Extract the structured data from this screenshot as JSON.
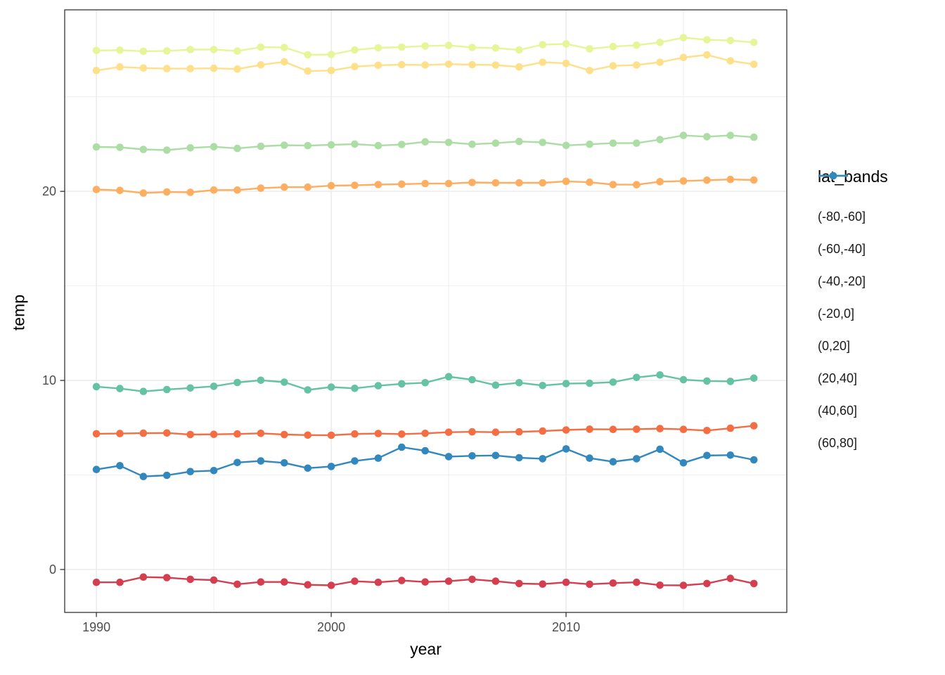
{
  "figure": {
    "background_color": "#ffffff",
    "panel_border_color": "#333333",
    "gridline_color": "#ebebeb",
    "tick_label_color": "#4d4d4d",
    "axis_title_color": "#000000"
  },
  "chart_data": {
    "type": "line",
    "title": "",
    "xlabel": "year",
    "ylabel": "temp",
    "legend_title": "lat_bands",
    "legend_position": "right",
    "grid": true,
    "x_ticks": [
      1990,
      2000,
      2010
    ],
    "y_ticks": [
      0,
      10,
      20
    ],
    "x_minor_ticks": [
      1995,
      2005,
      2015
    ],
    "y_minor_ticks": [
      5,
      15,
      25
    ],
    "xlim": [
      1988.65,
      2019.4
    ],
    "ylim": [
      -2.27,
      29.6
    ],
    "x": [
      1990,
      1991,
      1992,
      1993,
      1994,
      1995,
      1996,
      1997,
      1998,
      1999,
      2000,
      2001,
      2002,
      2003,
      2004,
      2005,
      2006,
      2007,
      2008,
      2009,
      2010,
      2011,
      2012,
      2013,
      2014,
      2015,
      2016,
      2017,
      2018
    ],
    "series": [
      {
        "name": "(-80,-60]",
        "color": "#d53e4f",
        "values": [
          -0.68,
          -0.68,
          -0.4,
          -0.43,
          -0.52,
          -0.56,
          -0.78,
          -0.66,
          -0.66,
          -0.81,
          -0.84,
          -0.62,
          -0.68,
          -0.58,
          -0.66,
          -0.62,
          -0.52,
          -0.62,
          -0.74,
          -0.77,
          -0.68,
          -0.78,
          -0.72,
          -0.68,
          -0.83,
          -0.84,
          -0.74,
          -0.47,
          -0.74
        ]
      },
      {
        "name": "(-60,-40]",
        "color": "#f46d43",
        "values": [
          7.18,
          7.19,
          7.21,
          7.22,
          7.14,
          7.15,
          7.17,
          7.2,
          7.14,
          7.11,
          7.1,
          7.17,
          7.19,
          7.16,
          7.2,
          7.26,
          7.28,
          7.26,
          7.28,
          7.32,
          7.38,
          7.42,
          7.41,
          7.42,
          7.45,
          7.41,
          7.35,
          7.47,
          7.6
        ]
      },
      {
        "name": "(-40,-20]",
        "color": "#fdae61",
        "values": [
          20.1,
          20.05,
          19.91,
          19.97,
          19.95,
          20.07,
          20.07,
          20.17,
          20.22,
          20.22,
          20.3,
          20.32,
          20.36,
          20.38,
          20.41,
          20.41,
          20.47,
          20.45,
          20.45,
          20.45,
          20.53,
          20.48,
          20.36,
          20.35,
          20.51,
          20.55,
          20.59,
          20.63,
          20.6
        ]
      },
      {
        "name": "(-20,0]",
        "color": "#fee08b",
        "values": [
          26.39,
          26.58,
          26.52,
          26.49,
          26.49,
          26.51,
          26.47,
          26.69,
          26.85,
          26.36,
          26.39,
          26.6,
          26.67,
          26.7,
          26.68,
          26.73,
          26.7,
          26.68,
          26.58,
          26.83,
          26.77,
          26.39,
          26.64,
          26.68,
          26.83,
          27.08,
          27.22,
          26.9,
          26.72
        ]
      },
      {
        "name": "(0,20]",
        "color": "#e6f598",
        "values": [
          27.45,
          27.47,
          27.41,
          27.43,
          27.5,
          27.5,
          27.42,
          27.63,
          27.61,
          27.22,
          27.24,
          27.48,
          27.59,
          27.63,
          27.69,
          27.72,
          27.61,
          27.58,
          27.48,
          27.76,
          27.8,
          27.54,
          27.66,
          27.73,
          27.88,
          28.13,
          28.02,
          27.98,
          27.88
        ]
      },
      {
        "name": "(20,40]",
        "color": "#abdda4",
        "values": [
          22.35,
          22.33,
          22.22,
          22.18,
          22.3,
          22.36,
          22.27,
          22.38,
          22.44,
          22.42,
          22.46,
          22.5,
          22.42,
          22.48,
          22.62,
          22.59,
          22.49,
          22.55,
          22.64,
          22.59,
          22.43,
          22.49,
          22.55,
          22.55,
          22.74,
          22.96,
          22.89,
          22.96,
          22.86
        ]
      },
      {
        "name": "(40,60]",
        "color": "#66c2a5",
        "values": [
          9.67,
          9.57,
          9.42,
          9.52,
          9.6,
          9.69,
          9.89,
          10.01,
          9.91,
          9.5,
          9.65,
          9.58,
          9.72,
          9.82,
          9.88,
          10.2,
          10.04,
          9.75,
          9.88,
          9.73,
          9.83,
          9.85,
          9.91,
          10.16,
          10.29,
          10.04,
          9.97,
          9.95,
          10.12
        ]
      },
      {
        "name": "(60,80]",
        "color": "#3288bd",
        "values": [
          5.29,
          5.49,
          4.92,
          4.98,
          5.18,
          5.23,
          5.66,
          5.74,
          5.64,
          5.36,
          5.45,
          5.74,
          5.89,
          6.47,
          6.28,
          5.97,
          6.01,
          6.03,
          5.91,
          5.86,
          6.38,
          5.89,
          5.7,
          5.86,
          6.36,
          5.64,
          6.03,
          6.05,
          5.8
        ]
      }
    ]
  }
}
